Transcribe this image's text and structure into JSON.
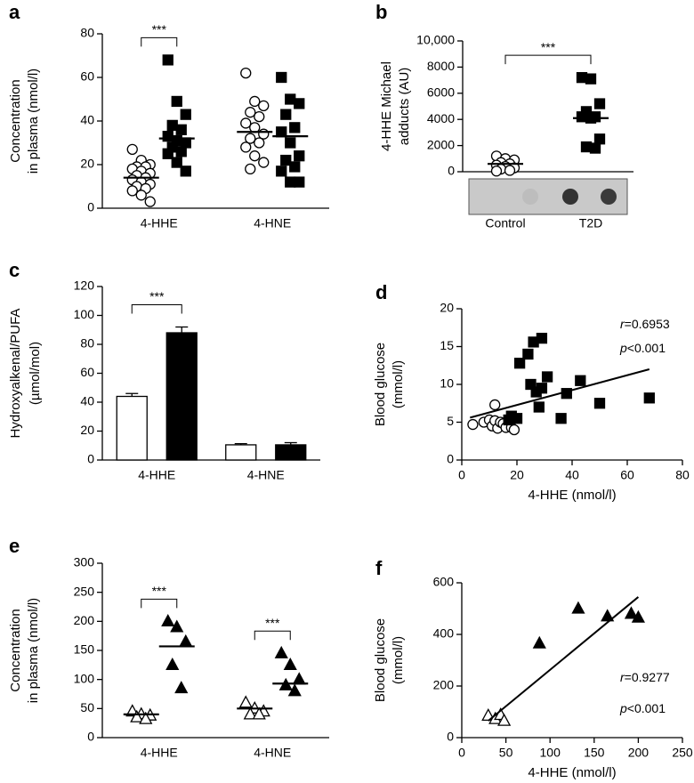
{
  "chart_data": [
    {
      "type": "dot",
      "panel_label": "a",
      "ylabel": [
        "Concentration",
        "in plasma (nmol/l)"
      ],
      "categories": [
        "4-HHE",
        "4-HNE"
      ],
      "ylim": [
        0,
        80
      ],
      "yticks": [
        0,
        20,
        40,
        60,
        80
      ],
      "series": [
        {
          "marker": "circle",
          "fill": "#ffffff",
          "values": [
            [
              27,
              22,
              20,
              19,
              19,
              18,
              17,
              16,
              15,
              14,
              13,
              12,
              11,
              10,
              9,
              8,
              6,
              3
            ],
            [
              62,
              49,
              47,
              44,
              42,
              39,
              37,
              34,
              32,
              30,
              28,
              24,
              21,
              18
            ]
          ],
          "mean": [
            14,
            35
          ]
        },
        {
          "marker": "square",
          "fill": "#000000",
          "values": [
            [
              68,
              49,
              43,
              38,
              36,
              33,
              31,
              30,
              28,
              26,
              25,
              21,
              17
            ],
            [
              60,
              50,
              48,
              43,
              37,
              35,
              30,
              24,
              22,
              19,
              17,
              12,
              12
            ]
          ],
          "mean": [
            32,
            33
          ]
        }
      ],
      "significance": [
        {
          "text": "***",
          "category": 0
        }
      ]
    },
    {
      "type": "dot",
      "panel_label": "b",
      "ylabel": [
        "4-HHE Michael",
        "adducts (AU)"
      ],
      "categories": [
        "Control",
        "T2D"
      ],
      "ylim": [
        0,
        10000
      ],
      "yticks": [
        0,
        2000,
        4000,
        6000,
        8000,
        {
          "value": 10000,
          "label": "10,000"
        }
      ],
      "series": [
        {
          "markers": [
            "circle",
            "square"
          ],
          "fills": [
            "#ffffff",
            "#000000"
          ],
          "values": [
            [
              1200,
              1000,
              900,
              700,
              600,
              500,
              400,
              300,
              200,
              100,
              50
            ],
            [
              7200,
              7100,
              5200,
              4600,
              4200,
              4200,
              4100,
              2500,
              1900,
              1800
            ]
          ],
          "mean": [
            600,
            4100
          ]
        }
      ],
      "significance": [
        {
          "text": "***"
        }
      ]
    },
    {
      "type": "bar",
      "panel_label": "c",
      "ylabel": [
        "Hydroxyalkenal/PUFA",
        "(µmol/mol)"
      ],
      "categories": [
        "4-HHE",
        "4-HNE"
      ],
      "ylim": [
        0,
        120
      ],
      "yticks": [
        0,
        20,
        40,
        60,
        80,
        100,
        120
      ],
      "series": [
        {
          "fill": "#ffffff",
          "values": [
            44,
            10.5
          ],
          "errors": [
            2,
            0.8
          ]
        },
        {
          "fill": "#000000",
          "values": [
            88,
            10.5
          ],
          "errors": [
            4,
            1.5
          ]
        }
      ],
      "significance": [
        {
          "text": "***",
          "category": 0
        }
      ]
    },
    {
      "type": "scatter",
      "panel_label": "d",
      "ylabel": [
        "Blood glucose",
        "(mmol/l)"
      ],
      "xlabel": "4-HHE (nmol/l)",
      "xlim": [
        0,
        80
      ],
      "xticks": [
        0,
        20,
        40,
        60,
        80
      ],
      "ylim": [
        0,
        20
      ],
      "yticks": [
        0,
        5,
        10,
        15,
        20
      ],
      "series": [
        {
          "marker": "circle",
          "fill": "#ffffff",
          "x": [
            4,
            8,
            10,
            11,
            12,
            12,
            13,
            14,
            15,
            16,
            17,
            18,
            18,
            19
          ],
          "y": [
            4.7,
            5,
            5.3,
            4.5,
            7.3,
            5.2,
            4.2,
            5,
            4.8,
            4.3,
            5.3,
            4.3,
            5.5,
            4
          ]
        },
        {
          "marker": "square",
          "fill": "#000000",
          "x": [
            17,
            18,
            20,
            21,
            24,
            25,
            26,
            27,
            28,
            29,
            29,
            31,
            36,
            38,
            43,
            50,
            68
          ],
          "y": [
            5.3,
            5.8,
            5.5,
            12.8,
            14,
            10,
            15.6,
            9,
            7,
            16.1,
            9.5,
            11,
            5.5,
            8.8,
            10.5,
            7.5,
            8.2
          ]
        }
      ],
      "fit": {
        "x": [
          3,
          68
        ],
        "y": [
          5.6,
          12
        ]
      },
      "annotations": [
        "r=0.6953",
        "p<0.001"
      ]
    },
    {
      "type": "dot",
      "panel_label": "e",
      "ylabel": [
        "Concentration",
        "in plasma (nmol/l)"
      ],
      "categories": [
        "4-HHE",
        "4-HNE"
      ],
      "ylim": [
        0,
        300
      ],
      "yticks": [
        0,
        50,
        100,
        150,
        200,
        250,
        300
      ],
      "series": [
        {
          "marker": "triangle",
          "fill": "#ffffff",
          "values": [
            [
              45,
              40,
              38,
              35,
              32
            ],
            [
              60,
              50,
              45,
              40,
              40
            ]
          ],
          "mean": [
            40,
            50
          ]
        },
        {
          "marker": "triangle",
          "fill": "#000000",
          "values": [
            [
              200,
              190,
              165,
              125,
              85
            ],
            [
              145,
              125,
              100,
              90,
              80
            ]
          ],
          "mean": [
            157,
            93
          ]
        }
      ],
      "significance": [
        {
          "text": "***",
          "category": 0
        },
        {
          "text": "***",
          "category": 1
        }
      ]
    },
    {
      "type": "scatter",
      "panel_label": "f",
      "ylabel": [
        "Blood glucose",
        "(mmol/l)"
      ],
      "xlabel": "4-HHE (nmol/l)",
      "xlim": [
        0,
        250
      ],
      "xticks": [
        0,
        50,
        100,
        150,
        200,
        250
      ],
      "ylim": [
        0,
        600
      ],
      "yticks": [
        0,
        200,
        400,
        600
      ],
      "series": [
        {
          "marker": "triangle",
          "fill": "#ffffff",
          "x": [
            30,
            38,
            44,
            48
          ],
          "y": [
            85,
            72,
            88,
            65
          ]
        },
        {
          "marker": "triangle",
          "fill": "#000000",
          "x": [
            88,
            132,
            165,
            192,
            200
          ],
          "y": [
            365,
            500,
            470,
            480,
            465
          ]
        }
      ],
      "fit": {
        "x": [
          30,
          200
        ],
        "y": [
          65,
          545
        ]
      },
      "annotations": [
        "r=0.9277",
        "p<0.001"
      ]
    }
  ]
}
